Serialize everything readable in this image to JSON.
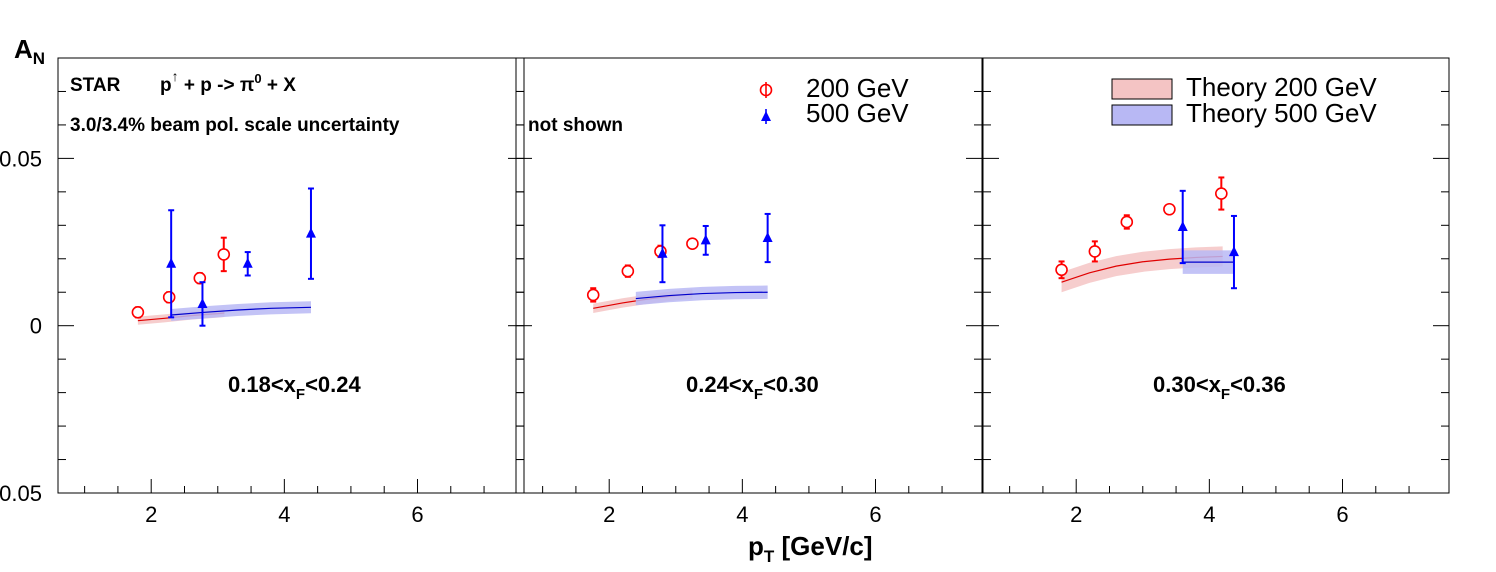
{
  "chart_data": {
    "type": "scatter",
    "y_axis_label": {
      "main": "A",
      "sub": "N"
    },
    "x_axis_label": {
      "main": "p",
      "sub": "T",
      "rest": " [GeV/c]"
    },
    "ylim": [
      -0.05,
      0.08
    ],
    "xlim": [
      0.6,
      7.6
    ],
    "y_tick_labels": [
      {
        "value": 0.05,
        "label": "0.05"
      },
      {
        "value": 0,
        "label": "0"
      },
      {
        "value": -0.05,
        "label": "0.05"
      }
    ],
    "x_tick_labels": [
      {
        "value": 2,
        "label": "2"
      },
      {
        "value": 4,
        "label": "4"
      },
      {
        "value": 6,
        "label": "6"
      }
    ],
    "annotations": {
      "experiment": "STAR",
      "reaction": {
        "p": "p",
        "arrow": "↑",
        "mid": " + p -> π",
        "sup": "0",
        "end": " + X"
      },
      "pol_uncertainty": "3.0/3.4% beam pol. scale uncertainty",
      "pol_uncertainty_cont": "not shown"
    },
    "legend": {
      "data": [
        {
          "label": "200 GeV",
          "marker": "open-circle",
          "color": "#ff0000"
        },
        {
          "label": "500 GeV",
          "marker": "filled-triangle",
          "color": "#0000ff"
        }
      ],
      "theory": [
        {
          "label": "Theory 200 GeV",
          "fill": "#f4c4c4",
          "line": "#e00000"
        },
        {
          "label": "Theory 500 GeV",
          "fill": "#b8b8f4",
          "line": "#0000cc"
        }
      ]
    },
    "panels": [
      {
        "bin_label": {
          "pre": "0.18<x",
          "sub": "F",
          "post": "<0.24"
        },
        "series": [
          {
            "name": "200 GeV",
            "color": "#ff0000",
            "marker": "open-circle",
            "points": [
              {
                "x": 1.8,
                "y": 0.004,
                "err": 0.0015
              },
              {
                "x": 2.27,
                "y": 0.0085,
                "err": 0.0015
              },
              {
                "x": 2.73,
                "y": 0.0142,
                "err": 0.0015
              },
              {
                "x": 3.09,
                "y": 0.0213,
                "err": 0.005
              }
            ]
          },
          {
            "name": "500 GeV",
            "color": "#0000ff",
            "marker": "filled-triangle",
            "points": [
              {
                "x": 2.3,
                "y": 0.0185,
                "err": 0.016
              },
              {
                "x": 2.77,
                "y": 0.0065,
                "err": 0.0065
              },
              {
                "x": 3.45,
                "y": 0.0185,
                "err": 0.0035
              },
              {
                "x": 4.4,
                "y": 0.0275,
                "err": 0.0135
              }
            ]
          }
        ],
        "theory": [
          {
            "name": "Theory 200 GeV",
            "x": [
              1.8,
              2.2,
              2.6,
              3.0,
              3.1
            ],
            "y": [
              0.0015,
              0.0022,
              0.003,
              0.0036,
              0.0038
            ],
            "band": 0.0012
          },
          {
            "name": "Theory 500 GeV",
            "x": [
              2.3,
              2.8,
              3.3,
              3.8,
              4.4
            ],
            "y": [
              0.0032,
              0.004,
              0.0047,
              0.0052,
              0.0055
            ],
            "band": 0.0018
          }
        ]
      },
      {
        "bin_label": {
          "pre": "0.24<x",
          "sub": "F",
          "post": "<0.30"
        },
        "series": [
          {
            "name": "200 GeV",
            "color": "#ff0000",
            "marker": "open-circle",
            "points": [
              {
                "x": 1.76,
                "y": 0.0092,
                "err": 0.002
              },
              {
                "x": 2.28,
                "y": 0.0163,
                "err": 0.0017
              },
              {
                "x": 2.77,
                "y": 0.0222,
                "err": 0.0017
              },
              {
                "x": 3.25,
                "y": 0.0245,
                "err": 0.001
              }
            ]
          },
          {
            "name": "500 GeV",
            "color": "#0000ff",
            "marker": "filled-triangle",
            "points": [
              {
                "x": 2.8,
                "y": 0.0215,
                "err": 0.0085
              },
              {
                "x": 3.45,
                "y": 0.0255,
                "err": 0.0043
              },
              {
                "x": 4.38,
                "y": 0.0262,
                "err": 0.0072
              }
            ]
          }
        ],
        "theory": [
          {
            "name": "Theory 200 GeV",
            "x": [
              1.76,
              2.2,
              2.6,
              3.0,
              3.25
            ],
            "y": [
              0.0052,
              0.0068,
              0.008,
              0.009,
              0.0095
            ],
            "band": 0.0014
          },
          {
            "name": "Theory 500 GeV",
            "x": [
              2.4,
              2.9,
              3.4,
              3.9,
              4.38
            ],
            "y": [
              0.0081,
              0.009,
              0.0096,
              0.0099,
              0.01
            ],
            "band": 0.002
          }
        ]
      },
      {
        "bin_label": {
          "pre": "0.30<x",
          "sub": "F",
          "post": "<0.36"
        },
        "series": [
          {
            "name": "200 GeV",
            "color": "#ff0000",
            "marker": "open-circle",
            "points": [
              {
                "x": 1.78,
                "y": 0.0167,
                "err": 0.0025
              },
              {
                "x": 2.28,
                "y": 0.0222,
                "err": 0.003
              },
              {
                "x": 2.76,
                "y": 0.031,
                "err": 0.002
              },
              {
                "x": 3.4,
                "y": 0.0348,
                "err": 0.001
              },
              {
                "x": 4.18,
                "y": 0.0395,
                "err": 0.0048
              }
            ]
          },
          {
            "name": "500 GeV",
            "color": "#0000ff",
            "marker": "filled-triangle",
            "points": [
              {
                "x": 3.6,
                "y": 0.0295,
                "err": 0.0108
              },
              {
                "x": 4.37,
                "y": 0.022,
                "err": 0.0108
              }
            ]
          }
        ],
        "theory": [
          {
            "name": "Theory 200 GeV",
            "x": [
              1.78,
              2.2,
              2.6,
              3.0,
              3.4,
              3.8,
              4.2
            ],
            "y": [
              0.013,
              0.0158,
              0.0178,
              0.0191,
              0.0199,
              0.0204,
              0.0207
            ],
            "band": 0.003
          },
          {
            "name": "Theory 500 GeV",
            "x": [
              3.6,
              4.0,
              4.37
            ],
            "y": [
              0.019,
              0.019,
              0.019
            ],
            "band": 0.0035
          }
        ]
      }
    ]
  }
}
